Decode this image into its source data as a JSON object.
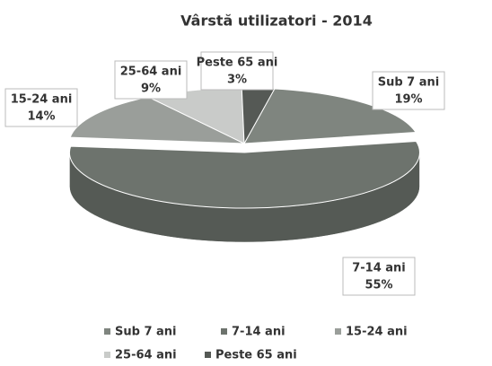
{
  "chart_data": {
    "type": "pie3d",
    "title": "Vârstă utilizatori - 2014",
    "categories": [
      "Sub 7 ani",
      "7-14 ani",
      "15-24 ani",
      "25-64 ani",
      "Peste 65 ani"
    ],
    "values": [
      19,
      55,
      14,
      9,
      3
    ],
    "value_labels": [
      "19%",
      "55%",
      "14%",
      "9%",
      "3%"
    ],
    "colors": [
      "#7f857f",
      "#6d736d",
      "#9a9e9a",
      "#c9cbc9",
      "#555955"
    ],
    "legend": "bottom"
  }
}
